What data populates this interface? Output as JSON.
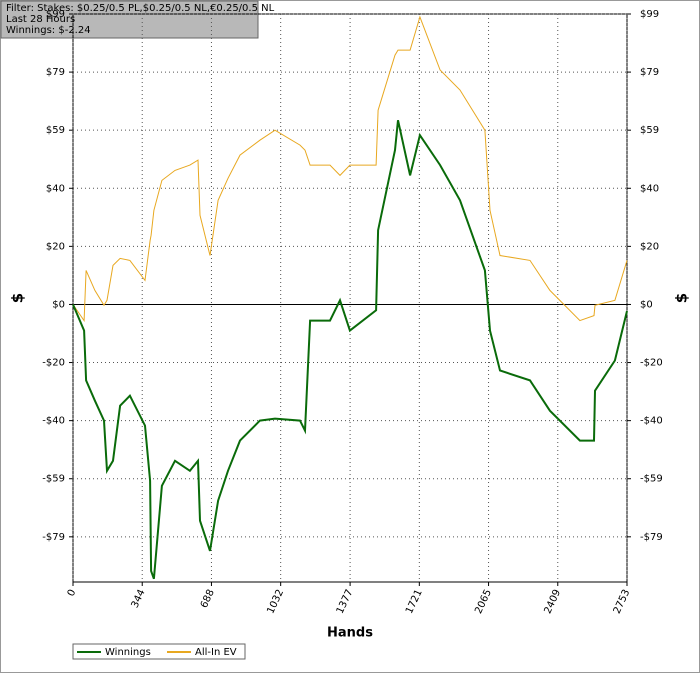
{
  "chart_data": {
    "type": "line",
    "annotations": [
      "Filter: Stakes: $0.25/0.5 PL,$0.25/0.5 NL,€0.25/0.5 NL",
      "Last  28 Hours",
      "Winnings: $-2.24"
    ],
    "x_label": "Hands",
    "y_label": "$",
    "x": [
      0,
      55,
      65,
      109,
      154,
      169,
      199,
      234,
      283,
      358,
      383,
      388,
      402,
      442,
      507,
      581,
      621,
      631,
      681,
      721,
      770,
      830,
      929,
      1004,
      1128,
      1153,
      1178,
      1277,
      1327,
      1376,
      1506,
      1516,
      1600,
      1615,
      1675,
      1724,
      1824,
      1923,
      2047,
      2072,
      2122,
      2271,
      2370,
      2519,
      2589,
      2594,
      2693,
      2753
    ],
    "series": [
      {
        "name": "Winnings",
        "color": "#0a6b0a",
        "values": [
          0,
          -8.9,
          -25.9,
          -32.8,
          -39.6,
          -56.7,
          -53.3,
          -34.5,
          -31.1,
          -41.3,
          -60.1,
          -90.8,
          -93.5,
          -61.8,
          -53.3,
          -56.7,
          -53.3,
          -73.7,
          -84.0,
          -66.9,
          -56.7,
          -46.4,
          -39.6,
          -38.9,
          -39.6,
          -43.0,
          -5.5,
          -5.5,
          1.4,
          -8.9,
          -2.0,
          25.3,
          52.6,
          62.8,
          44.0,
          57.7,
          47.5,
          35.5,
          11.6,
          -8.9,
          -22.5,
          -25.9,
          -36.2,
          -46.4,
          -46.4,
          -29.4,
          -19.1,
          -2.24
        ]
      },
      {
        "name": "All-In EV",
        "color": "#e8a820",
        "values": [
          0,
          -5.5,
          11.6,
          4.8,
          -0.3,
          1.4,
          13.3,
          15.7,
          15.0,
          8.2,
          21.8,
          23.6,
          32.1,
          42.3,
          45.7,
          47.5,
          49.2,
          30.4,
          16.7,
          35.5,
          43.0,
          50.9,
          56.0,
          59.4,
          54.3,
          52.6,
          47.5,
          47.5,
          44.0,
          47.5,
          47.5,
          66.2,
          85.0,
          86.7,
          86.7,
          98.0,
          79.9,
          73.1,
          59.4,
          32.1,
          16.7,
          15.0,
          4.8,
          -5.5,
          -3.8,
          -0.3,
          1.4,
          15.0
        ]
      }
    ],
    "xlim": [
      0,
      2753
    ],
    "xticks": [
      0,
      344,
      688,
      1032,
      1377,
      1721,
      2065,
      2409,
      2753
    ],
    "ylim": [
      -94.6,
      99
    ],
    "yticks": [
      {
        "value": -79.2,
        "label": "-$79"
      },
      {
        "value": -59.4,
        "label": "-$59"
      },
      {
        "value": -39.6,
        "label": "-$40"
      },
      {
        "value": -19.8,
        "label": "-$20"
      },
      {
        "value": 0,
        "label": "$0"
      },
      {
        "value": 19.8,
        "label": "$20"
      },
      {
        "value": 39.6,
        "label": "$40"
      },
      {
        "value": 59.4,
        "label": "$59"
      },
      {
        "value": 79.2,
        "label": "$79"
      },
      {
        "value": 99,
        "label": "$99"
      }
    ],
    "grid": true,
    "legend": "bottom-left"
  }
}
